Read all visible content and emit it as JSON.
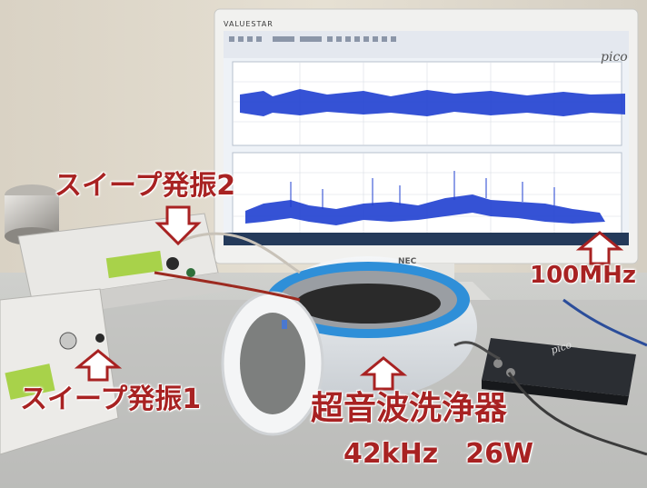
{
  "annotations": {
    "sweep2": "スイープ発振2",
    "sweep1": "スイープ発振1",
    "cleaner": "超音波洗浄器",
    "cleaner_spec": "42kHz　26W",
    "frequency": "100MHz"
  },
  "monitor": {
    "brand": "VALUESTAR",
    "app_logo": "pico",
    "maker": "NEC"
  },
  "scope_device": {
    "logo": "pico"
  },
  "icons": [
    "up-arrow-icon",
    "down-arrow-icon"
  ],
  "colors": {
    "label_red": "#a82222",
    "trace_blue": "#1f3fd0",
    "cleaner_blue": "#2f8fd8"
  }
}
